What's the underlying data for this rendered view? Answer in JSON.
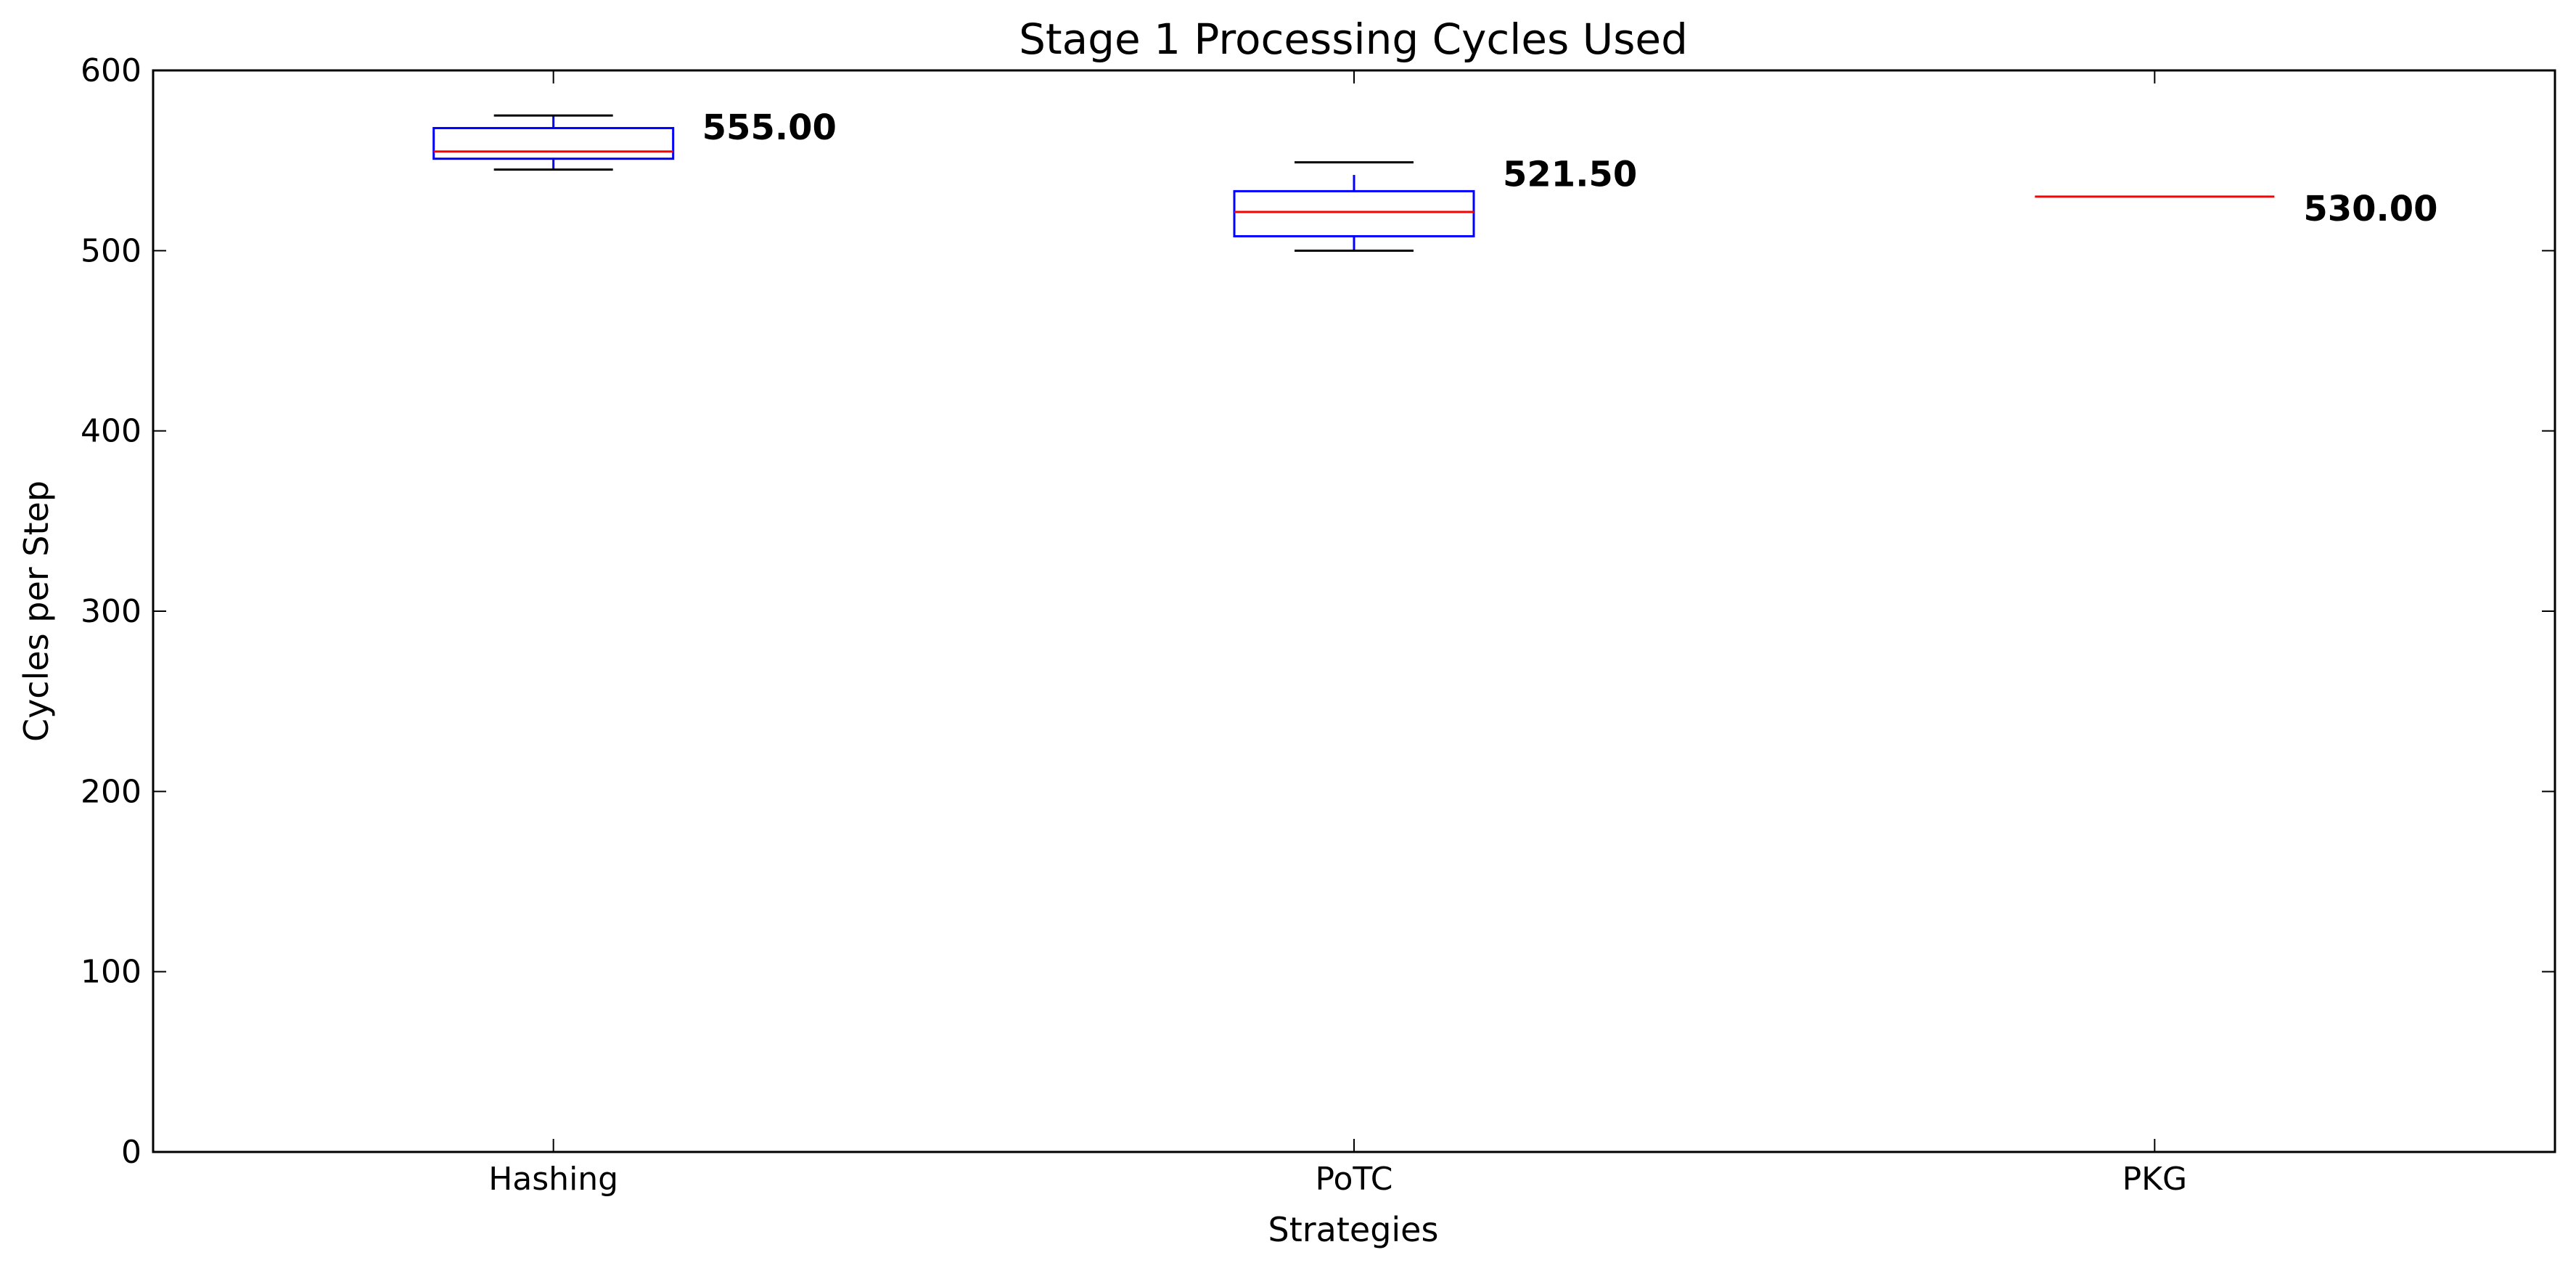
{
  "chart_data": {
    "type": "box",
    "title": "Stage 1 Processing Cycles Used",
    "xlabel": "Strategies",
    "ylabel": "Cycles per Step",
    "ylim": [
      0,
      600
    ],
    "yticks": [
      0,
      100,
      200,
      300,
      400,
      500,
      600
    ],
    "yticks_text": [
      "0",
      "100",
      "200",
      "300",
      "400",
      "500",
      "600"
    ],
    "grid": false,
    "categories": [
      "Hashing",
      "PoTC",
      "PKG"
    ],
    "boxes": [
      {
        "category": "Hashing",
        "whisker_low": 545,
        "q1": 551,
        "median": 555,
        "q3": 568,
        "whisker_high": 575,
        "label": "555.00"
      },
      {
        "category": "PoTC",
        "whisker_low": 500,
        "q1": 508,
        "median": 521.5,
        "q3": 533,
        "whisker_high": 549,
        "whisker_high_inner": 542,
        "label": "521.50"
      },
      {
        "category": "PKG",
        "whisker_low": 530,
        "q1": 530,
        "median": 530,
        "q3": 530,
        "whisker_high": 530,
        "label": "530.00"
      }
    ],
    "colors": {
      "box": "#0000ff",
      "median": "#ff0000",
      "whisker": "#000000",
      "axis": "#000000"
    }
  }
}
